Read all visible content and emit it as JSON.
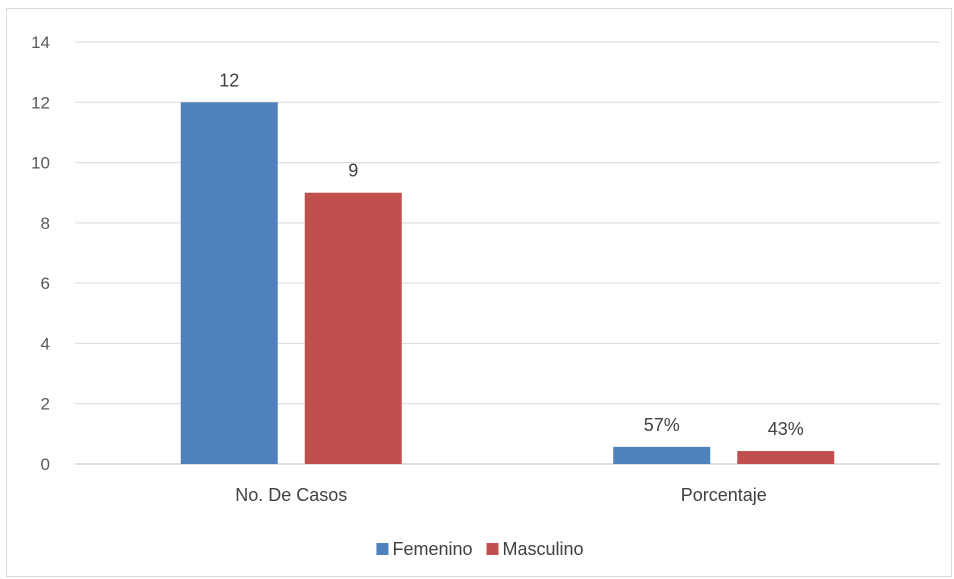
{
  "chart_data": {
    "type": "bar",
    "title": "",
    "xlabel": "",
    "ylabel": "",
    "categories": [
      "No. De Casos",
      "Porcentaje"
    ],
    "series": [
      {
        "name": "Femenino",
        "color": "#4f81bd",
        "values": [
          12,
          0.57
        ],
        "labels": [
          "12",
          "57%"
        ]
      },
      {
        "name": "Masculino",
        "color": "#c0504d",
        "values": [
          9,
          0.43
        ],
        "labels": [
          "9",
          "43%"
        ]
      }
    ],
    "ylim": [
      0,
      14
    ],
    "yticks": [
      0,
      2,
      4,
      6,
      8,
      10,
      12,
      14
    ],
    "grid": true,
    "legend_position": "bottom"
  }
}
